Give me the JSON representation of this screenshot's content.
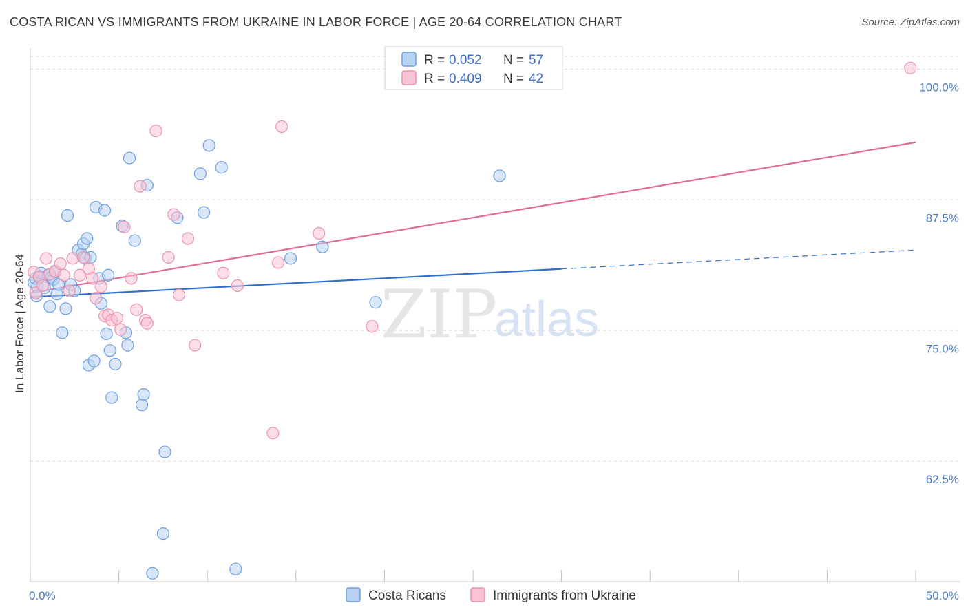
{
  "title": "COSTA RICAN VS IMMIGRANTS FROM UKRAINE IN LABOR FORCE | AGE 20-64 CORRELATION CHART",
  "source": "Source: ZipAtlas.com",
  "watermark": {
    "zip": "ZIP",
    "atlas": "atlas"
  },
  "colors": {
    "blue_fill": "#b8d2f3",
    "blue_stroke": "#6d9fe0",
    "blue_line": "#2d6fcd",
    "pink_fill": "#f8c3d4",
    "pink_stroke": "#ea93b0",
    "pink_line": "#e06b96",
    "grid": "#d9d9d9",
    "axis_label": "#4a78c2"
  },
  "legend": {
    "r_label": "R =",
    "n_label": "N =",
    "series": [
      {
        "r": "0.052",
        "n": "57"
      },
      {
        "r": "0.409",
        "n": "42"
      }
    ]
  },
  "chart_data": {
    "type": "scatter",
    "xlabel": "",
    "ylabel": "In Labor Force | Age 20-64",
    "xlim": [
      0,
      50
    ],
    "ylim": [
      51,
      102
    ],
    "x_tick_labels": [
      {
        "v": 0,
        "label": "0.0%"
      },
      {
        "v": 50,
        "label": "50.0%"
      }
    ],
    "x_minor_ticks": [
      0,
      5,
      10,
      15,
      20,
      25,
      30,
      35,
      40,
      45,
      50
    ],
    "y_ticks": [
      {
        "v": 100,
        "label": "100.0%"
      },
      {
        "v": 87.5,
        "label": "87.5%"
      },
      {
        "v": 75,
        "label": "75.0%"
      },
      {
        "v": 62.5,
        "label": "62.5%"
      }
    ],
    "grid": true,
    "legend_position": "top-center",
    "series": [
      {
        "name": "Costa Ricans",
        "points": [
          [
            0.2,
            79.6
          ],
          [
            0.3,
            80.0
          ],
          [
            0.4,
            79.2
          ],
          [
            0.5,
            80.2
          ],
          [
            0.6,
            80.5
          ],
          [
            0.8,
            79.1
          ],
          [
            1.0,
            80.3
          ],
          [
            1.1,
            77.3
          ],
          [
            1.2,
            80.1
          ],
          [
            1.3,
            79.9
          ],
          [
            1.5,
            78.5
          ],
          [
            1.6,
            79.4
          ],
          [
            1.8,
            74.8
          ],
          [
            2.0,
            77.1
          ],
          [
            2.1,
            86.0
          ],
          [
            2.3,
            79.4
          ],
          [
            2.5,
            78.8
          ],
          [
            2.7,
            82.7
          ],
          [
            2.9,
            82.3
          ],
          [
            3.0,
            83.3
          ],
          [
            3.1,
            81.9
          ],
          [
            3.2,
            83.8
          ],
          [
            3.3,
            71.7
          ],
          [
            3.4,
            82.0
          ],
          [
            3.6,
            72.1
          ],
          [
            3.7,
            86.8
          ],
          [
            3.9,
            80.0
          ],
          [
            4.0,
            77.6
          ],
          [
            4.2,
            86.5
          ],
          [
            4.3,
            74.7
          ],
          [
            4.4,
            80.3
          ],
          [
            4.5,
            73.1
          ],
          [
            4.6,
            68.6
          ],
          [
            4.8,
            71.8
          ],
          [
            5.2,
            85.0
          ],
          [
            5.4,
            74.8
          ],
          [
            5.5,
            73.6
          ],
          [
            5.6,
            91.5
          ],
          [
            5.9,
            83.6
          ],
          [
            6.3,
            67.9
          ],
          [
            6.4,
            68.9
          ],
          [
            6.6,
            88.9
          ],
          [
            6.9,
            51.8
          ],
          [
            7.5,
            55.6
          ],
          [
            7.6,
            63.4
          ],
          [
            8.3,
            85.8
          ],
          [
            9.6,
            90.0
          ],
          [
            9.8,
            86.3
          ],
          [
            10.1,
            92.7
          ],
          [
            10.8,
            90.6
          ],
          [
            11.6,
            52.2
          ],
          [
            14.7,
            81.9
          ],
          [
            16.5,
            83.0
          ],
          [
            19.5,
            77.7
          ],
          [
            26.5,
            89.8
          ],
          [
            0.35,
            78.3
          ],
          [
            1.4,
            80.6
          ]
        ]
      },
      {
        "name": "Immigrants from Ukraine",
        "points": [
          [
            0.2,
            80.6
          ],
          [
            0.3,
            78.6
          ],
          [
            0.5,
            80.1
          ],
          [
            0.7,
            79.3
          ],
          [
            0.9,
            81.9
          ],
          [
            1.1,
            80.4
          ],
          [
            1.4,
            80.7
          ],
          [
            1.7,
            81.4
          ],
          [
            1.9,
            80.3
          ],
          [
            2.2,
            78.8
          ],
          [
            2.4,
            81.9
          ],
          [
            2.8,
            80.3
          ],
          [
            3.0,
            82.0
          ],
          [
            3.3,
            80.9
          ],
          [
            3.5,
            80.0
          ],
          [
            3.7,
            78.1
          ],
          [
            4.0,
            79.2
          ],
          [
            4.2,
            76.4
          ],
          [
            4.4,
            76.5
          ],
          [
            4.6,
            76.0
          ],
          [
            4.9,
            76.2
          ],
          [
            5.1,
            75.1
          ],
          [
            5.3,
            84.9
          ],
          [
            5.7,
            80.0
          ],
          [
            6.0,
            77.0
          ],
          [
            6.2,
            88.8
          ],
          [
            6.5,
            76.0
          ],
          [
            6.6,
            75.7
          ],
          [
            7.1,
            94.1
          ],
          [
            7.8,
            82.0
          ],
          [
            8.1,
            86.1
          ],
          [
            8.4,
            78.4
          ],
          [
            8.9,
            83.8
          ],
          [
            9.3,
            73.6
          ],
          [
            10.9,
            80.5
          ],
          [
            11.7,
            79.3
          ],
          [
            13.7,
            65.2
          ],
          [
            14.0,
            81.5
          ],
          [
            14.2,
            94.5
          ],
          [
            16.3,
            84.3
          ],
          [
            19.3,
            75.4
          ],
          [
            49.7,
            100.1
          ]
        ]
      }
    ],
    "trend_lines": [
      {
        "series": "Costa Ricans",
        "x0": 0,
        "y0": 78.2,
        "x1": 30,
        "y1": 80.9,
        "dash_to_x": 50,
        "dash_to_y": 82.7
      },
      {
        "series": "Immigrants from Ukraine",
        "x0": 0,
        "y0": 78.6,
        "x1": 50,
        "y1": 93.0
      }
    ]
  }
}
